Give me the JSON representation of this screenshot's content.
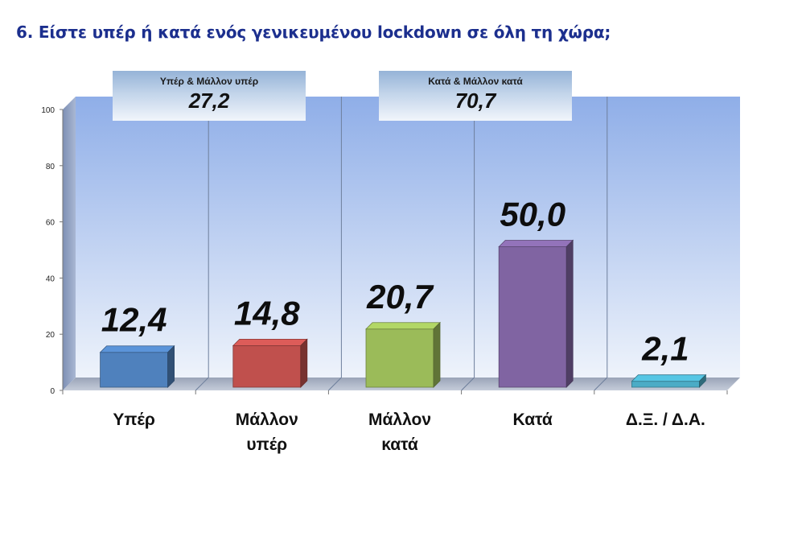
{
  "page": {
    "title": "6. Είστε υπέρ ή κατά ενός γενικευμένου lockdown σε όλη τη χώρα;"
  },
  "callouts": [
    {
      "label": "Υπέρ & Μάλλον υπέρ",
      "value": "27,2"
    },
    {
      "label": "Κατά & Μάλλον κατά",
      "value": "70,7"
    }
  ],
  "colors": {
    "title": "#1c2f8e",
    "plot_top": "#8faee8",
    "plot_bottom": "#eef3fb"
  },
  "chart_data": {
    "type": "bar",
    "categories": [
      [
        "Υπέρ"
      ],
      [
        "Μάλλον",
        "υπέρ"
      ],
      [
        "Μάλλον",
        "κατά"
      ],
      [
        "Κατά"
      ],
      [
        "Δ.Ξ. / Δ.Α."
      ]
    ],
    "values": [
      12.4,
      14.8,
      20.7,
      50.0,
      2.1
    ],
    "value_labels": [
      "12,4",
      "14,8",
      "20,7",
      "50,0",
      "2,1"
    ],
    "bar_colors": [
      "#4f81bd",
      "#c0504d",
      "#9bbb59",
      "#8064a2",
      "#4bacc6"
    ],
    "ylim": [
      0,
      100
    ],
    "yticks": [
      0,
      20,
      40,
      60,
      80,
      100
    ],
    "grid": true,
    "legend": "none"
  }
}
